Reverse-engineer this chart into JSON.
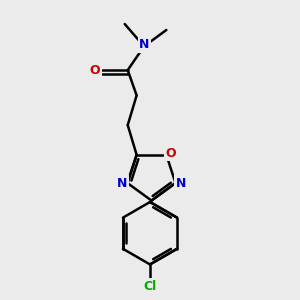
{
  "background_color": "#ebebeb",
  "bond_color": "#000000",
  "N_color": "#0000cc",
  "O_color": "#cc0000",
  "Cl_color": "#00aa00",
  "bond_width": 1.8,
  "figsize": [
    3.0,
    3.0
  ],
  "dpi": 100,
  "xlim": [
    0,
    10
  ],
  "ylim": [
    0,
    10
  ]
}
